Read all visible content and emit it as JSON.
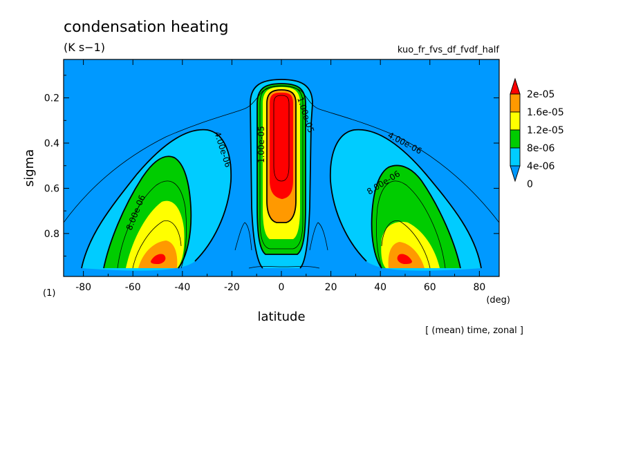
{
  "chart_data": {
    "type": "contour",
    "title": "condensation heating",
    "units": "(K s−1)",
    "run_name": "kuo_fr_fvs_df_fvdf_half",
    "xlabel": "latitude",
    "x_units": "(deg)",
    "ylabel": "sigma",
    "panel_label": "(1)",
    "note": "[ (mean) time, zonal ]",
    "xlim": [
      -88,
      88
    ],
    "ylim": [
      0.03,
      0.99
    ],
    "y_inverted": true,
    "x_ticks": [
      -80,
      -60,
      -40,
      -20,
      0,
      20,
      40,
      60,
      80
    ],
    "y_ticks": [
      0.2,
      0.4,
      0.6,
      0.8
    ],
    "colorbar": {
      "levels": [
        0,
        4e-06,
        8e-06,
        1.2e-05,
        1.6e-05,
        2e-05
      ],
      "labels": [
        "2e-05",
        "1.6e-05",
        "1.2e-05",
        "8e-06",
        "4e-06",
        "0"
      ],
      "colors": [
        "#0099FF",
        "#00CCFF",
        "#00CC00",
        "#FFFF00",
        "#FF9900",
        "#FF0000"
      ],
      "extend": "both"
    },
    "contour_labels": [
      "4.00e-06",
      "8.00e-06",
      "4.00e-06",
      "8.00e-06",
      "1.00e-05",
      "1.00e-05"
    ],
    "features": [
      {
        "name": "equatorial maximum",
        "lat": 0,
        "sigma_range": [
          0.14,
          0.92
        ],
        "max_value": ">2e-05"
      },
      {
        "name": "southern midlatitude maximum",
        "lat": -50,
        "sigma": 0.91,
        "max_value": ">2e-05"
      },
      {
        "name": "northern midlatitude maximum",
        "lat": 50,
        "sigma": 0.91,
        "max_value": ">2e-05"
      }
    ]
  }
}
